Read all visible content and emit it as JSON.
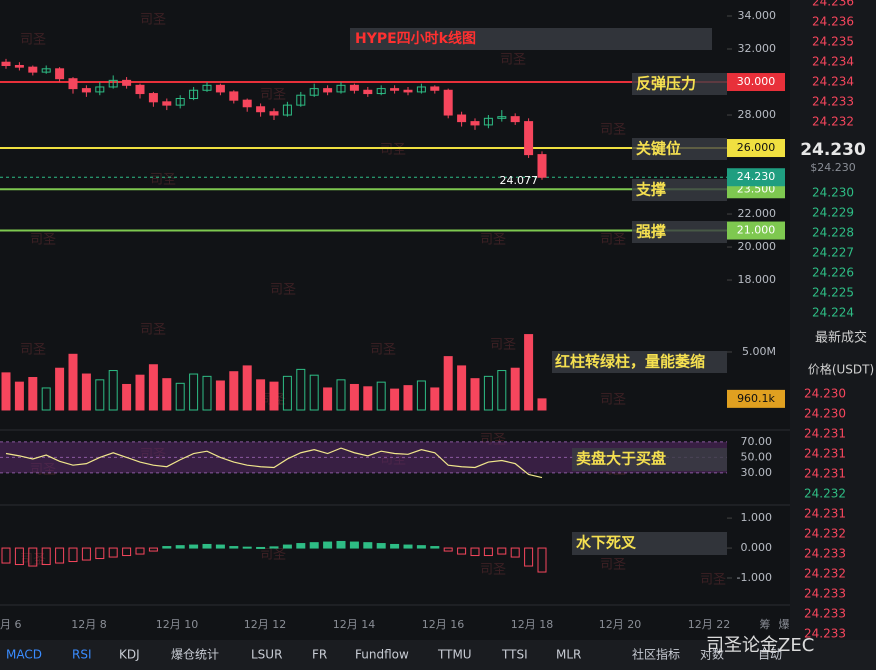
{
  "chart_data": [
    {
      "type": "candlestick",
      "title": "HYPE四小时k线图",
      "open": [
        31.2,
        31.0,
        30.9,
        30.6,
        30.8,
        30.2,
        29.6,
        29.4,
        29.7,
        30.1,
        29.8,
        29.3,
        28.8,
        28.6,
        29.0,
        29.5,
        29.8,
        29.4,
        28.9,
        28.5,
        28.2,
        28.0,
        28.6,
        29.2,
        29.6,
        29.4,
        29.8,
        29.5,
        29.3,
        29.6,
        29.5,
        29.4,
        29.7,
        29.5,
        28.0,
        27.6,
        27.4,
        27.8,
        27.9,
        27.6,
        25.6
      ],
      "high": [
        31.4,
        31.2,
        31.0,
        31.0,
        30.9,
        30.3,
        29.8,
        30.0,
        30.4,
        30.3,
        29.9,
        29.4,
        29.0,
        29.2,
        29.7,
        30.0,
        29.9,
        29.5,
        29.0,
        28.7,
        28.4,
        28.8,
        29.4,
        29.9,
        29.8,
        30.0,
        29.9,
        29.7,
        29.8,
        29.8,
        29.7,
        29.9,
        29.8,
        29.6,
        28.2,
        27.8,
        28.0,
        28.3,
        28.1,
        27.8,
        25.8
      ],
      "low": [
        30.8,
        30.7,
        30.4,
        30.5,
        30.0,
        29.3,
        29.1,
        29.2,
        29.6,
        29.6,
        29.0,
        28.5,
        28.3,
        28.4,
        28.9,
        29.4,
        29.2,
        28.7,
        28.2,
        27.9,
        27.7,
        27.9,
        28.5,
        29.1,
        29.2,
        29.3,
        29.3,
        29.1,
        29.2,
        29.3,
        29.2,
        29.3,
        29.3,
        27.8,
        27.3,
        27.1,
        27.2,
        27.6,
        27.4,
        25.4,
        24.077
      ],
      "close": [
        31.0,
        30.9,
        30.6,
        30.8,
        30.2,
        29.6,
        29.4,
        29.7,
        30.1,
        29.8,
        29.3,
        28.8,
        28.6,
        29.0,
        29.5,
        29.8,
        29.4,
        28.9,
        28.5,
        28.2,
        28.0,
        28.6,
        29.2,
        29.6,
        29.4,
        29.8,
        29.5,
        29.3,
        29.6,
        29.5,
        29.4,
        29.7,
        29.5,
        28.0,
        27.6,
        27.4,
        27.8,
        27.9,
        27.6,
        25.6,
        24.23
      ],
      "ylim": [
        16.79,
        34.97
      ],
      "yticks": [
        {
          "value": 34,
          "label": "34.000"
        },
        {
          "value": 32,
          "label": "32.000"
        },
        {
          "value": 28,
          "label": "28.000"
        },
        {
          "value": 22,
          "label": "22.000"
        },
        {
          "value": 20,
          "label": "20.000"
        },
        {
          "value": 18,
          "label": "18.000"
        }
      ],
      "levels": [
        {
          "value": 30,
          "label": "30.000",
          "name": "反弹压力",
          "color": "#e8303a"
        },
        {
          "value": 26,
          "label": "26.000",
          "name": "关键位",
          "color": "#f0e040"
        },
        {
          "value": 23.5,
          "label": "23.500",
          "name": "支撑",
          "color": "#7ec850"
        },
        {
          "value": 21,
          "label": "21.000",
          "name": "强撑",
          "color": "#7ec850"
        }
      ],
      "last_price": {
        "value": 24.23,
        "label": "24.230"
      },
      "x_labels": [
        "月 6",
        "12月 8",
        "12月 10",
        "12月 12",
        "12月 14",
        "12月 16",
        "12月 18",
        "12月 20",
        "12月 22",
        "筹",
        "爆"
      ]
    },
    {
      "type": "bar",
      "annotation": "红柱转绿柱，量能萎缩",
      "values": [
        3200000,
        2400000,
        2800000,
        1900000,
        3600000,
        4800000,
        3100000,
        2600000,
        3400000,
        2200000,
        3000000,
        3900000,
        2700000,
        2300000,
        3100000,
        2900000,
        2500000,
        3300000,
        3800000,
        2600000,
        2400000,
        2900000,
        3500000,
        3000000,
        1900000,
        2600000,
        2200000,
        2000000,
        2400000,
        1800000,
        2100000,
        2500000,
        1900000,
        4600000,
        3800000,
        2700000,
        2900000,
        3400000,
        3600000,
        6500000,
        960100
      ],
      "value_labels": [
        null,
        null,
        null,
        null,
        null,
        null,
        null,
        null,
        null,
        null,
        null,
        null,
        null,
        null,
        null,
        null,
        null,
        null,
        null,
        null,
        null,
        null,
        null,
        null,
        null,
        null,
        null,
        null,
        null,
        null,
        null,
        null,
        null,
        null,
        null,
        null,
        null,
        null,
        null,
        null,
        "960.1k"
      ],
      "ylim": [
        0,
        9480000
      ],
      "yticks": [
        {
          "value": 5000000,
          "label": "5.00M"
        }
      ]
    },
    {
      "type": "line",
      "annotation": "卖盘大于买盘",
      "color": "#f0e68c",
      "values": [
        55,
        52,
        48,
        53,
        45,
        40,
        42,
        50,
        56,
        50,
        44,
        40,
        38,
        47,
        55,
        58,
        50,
        44,
        40,
        38,
        37,
        48,
        56,
        60,
        55,
        62,
        56,
        52,
        58,
        55,
        54,
        60,
        56,
        40,
        38,
        37,
        44,
        46,
        42,
        28,
        24
      ],
      "ylim": [
        8,
        75
      ],
      "yticks": [
        {
          "value": 70,
          "label": "70.00"
        },
        {
          "value": 50,
          "label": "50.00"
        },
        {
          "value": 30,
          "label": "30.00"
        }
      ]
    },
    {
      "type": "bar",
      "annotation": "水下死叉",
      "values": [
        -0.5,
        -0.55,
        -0.6,
        -0.55,
        -0.5,
        -0.45,
        -0.4,
        -0.35,
        -0.3,
        -0.25,
        -0.2,
        -0.1,
        0.05,
        0.08,
        0.1,
        0.12,
        0.1,
        0.05,
        0.03,
        0.02,
        0.04,
        0.1,
        0.15,
        0.18,
        0.2,
        0.22,
        0.2,
        0.18,
        0.15,
        0.12,
        0.1,
        0.08,
        0.05,
        -0.1,
        -0.2,
        -0.25,
        -0.25,
        -0.2,
        -0.3,
        -0.6,
        -0.8
      ],
      "ylim": [
        -1.3,
        1.17
      ],
      "yticks": [
        {
          "value": 1,
          "label": "1.000"
        },
        {
          "value": 0,
          "label": "0.000"
        },
        {
          "value": -1,
          "label": "-1.000"
        }
      ]
    }
  ],
  "order_book": {
    "asks": [
      "24.236",
      "24.236",
      "24.235",
      "24.234",
      "24.234",
      "24.233",
      "24.232"
    ],
    "price": "24.230",
    "usd": "$24.230",
    "bids": [
      "24.230",
      "24.229",
      "24.228",
      "24.227",
      "24.226",
      "24.225",
      "24.224"
    ],
    "trades_title": "最新成交",
    "trades_header": "价格(USDT)",
    "trades": [
      "24.230",
      "24.230",
      "24.231",
      "24.231",
      "24.231",
      "24.232",
      "24.231",
      "24.232",
      "24.233",
      "24.232",
      "24.233",
      "24.233",
      "24.233"
    ],
    "trade_colors": [
      "#f6465d",
      "#f6465d",
      "#f6465d",
      "#f6465d",
      "#f6465d",
      "#2ebd85",
      "#f6465d",
      "#f6465d",
      "#f6465d",
      "#f6465d",
      "#f6465d",
      "#f6465d",
      "#f6465d"
    ]
  },
  "tabs": [
    "MACD",
    "RSI",
    "KDJ",
    "爆仓统计",
    "LSUR",
    "FR",
    "Fundflow",
    "TTMU",
    "TTSI",
    "MLR",
    "社区指标",
    "对数",
    "自动"
  ],
  "watermark": "司圣论金ZEC",
  "stamp": "司圣"
}
